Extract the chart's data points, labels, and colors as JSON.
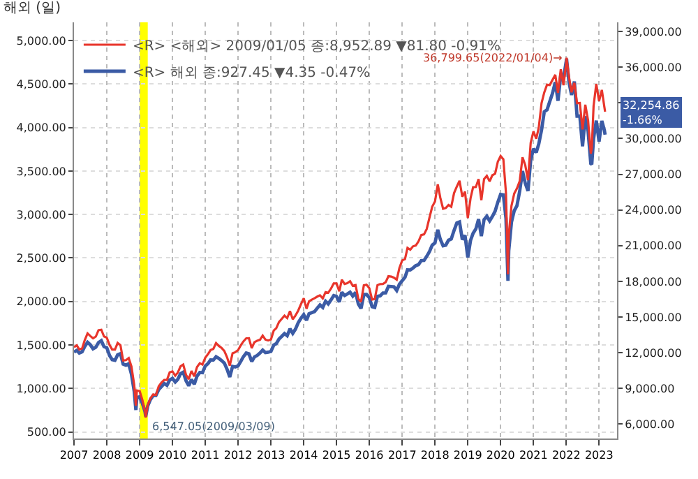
{
  "chart_data": {
    "type": "line",
    "title": "해외 (일)",
    "x": [
      "2007-01",
      "2007-02",
      "2007-03",
      "2007-04",
      "2007-05",
      "2007-06",
      "2007-07",
      "2007-08",
      "2007-09",
      "2007-10",
      "2007-11",
      "2007-12",
      "2008-01",
      "2008-02",
      "2008-03",
      "2008-04",
      "2008-05",
      "2008-06",
      "2008-07",
      "2008-08",
      "2008-09",
      "2008-10",
      "2008-11",
      "2008-11-20",
      "2008-12",
      "2009-01",
      "2009-02",
      "2009-03",
      "2009-03-09",
      "2009-04",
      "2009-05",
      "2009-06",
      "2009-07",
      "2009-08",
      "2009-09",
      "2009-10",
      "2009-11",
      "2009-12",
      "2010-01",
      "2010-02",
      "2010-03",
      "2010-04",
      "2010-05",
      "2010-06",
      "2010-07",
      "2010-08",
      "2010-09",
      "2010-10",
      "2010-11",
      "2010-12",
      "2011-01",
      "2011-02",
      "2011-03",
      "2011-04",
      "2011-05",
      "2011-06",
      "2011-07",
      "2011-08",
      "2011-09",
      "2011-10",
      "2011-11",
      "2011-12",
      "2012-01",
      "2012-02",
      "2012-03",
      "2012-04",
      "2012-05",
      "2012-06",
      "2012-07",
      "2012-08",
      "2012-09",
      "2012-10",
      "2012-11",
      "2012-12",
      "2013-01",
      "2013-02",
      "2013-03",
      "2013-04",
      "2013-05",
      "2013-06",
      "2013-07",
      "2013-08",
      "2013-09",
      "2013-10",
      "2013-11",
      "2013-12",
      "2014-01",
      "2014-02",
      "2014-03",
      "2014-04",
      "2014-05",
      "2014-06",
      "2014-07",
      "2014-08",
      "2014-09",
      "2014-10",
      "2014-11",
      "2014-12",
      "2015-01",
      "2015-02",
      "2015-03",
      "2015-04",
      "2015-05",
      "2015-06",
      "2015-07",
      "2015-08",
      "2015-09",
      "2015-10",
      "2015-11",
      "2015-12",
      "2016-01",
      "2016-02",
      "2016-03",
      "2016-04",
      "2016-05",
      "2016-06",
      "2016-07",
      "2016-08",
      "2016-09",
      "2016-10",
      "2016-11",
      "2016-12",
      "2017-01",
      "2017-02",
      "2017-03",
      "2017-04",
      "2017-05",
      "2017-06",
      "2017-07",
      "2017-08",
      "2017-09",
      "2017-10",
      "2017-11",
      "2017-12",
      "2018-01",
      "2018-02",
      "2018-03",
      "2018-04",
      "2018-05",
      "2018-06",
      "2018-07",
      "2018-08",
      "2018-09",
      "2018-10",
      "2018-11",
      "2018-12",
      "2019-01",
      "2019-02",
      "2019-03",
      "2019-04",
      "2019-05",
      "2019-06",
      "2019-07",
      "2019-08",
      "2019-09",
      "2019-10",
      "2019-11",
      "2019-12",
      "2020-01",
      "2020-02",
      "2020-03",
      "2020-03-23",
      "2020-04",
      "2020-05",
      "2020-06",
      "2020-07",
      "2020-08",
      "2020-09",
      "2020-10",
      "2020-11",
      "2020-12",
      "2021-01",
      "2021-02",
      "2021-03",
      "2021-04",
      "2021-05",
      "2021-06",
      "2021-07",
      "2021-08",
      "2021-09",
      "2021-10",
      "2021-11",
      "2021-12",
      "2022-01",
      "2022-01-04",
      "2022-02",
      "2022-03",
      "2022-04",
      "2022-05",
      "2022-06",
      "2022-07",
      "2022-08",
      "2022-09",
      "2022-10",
      "2022-10-12",
      "2022-11",
      "2022-12",
      "2023-01",
      "2023-02",
      "2023-03",
      "2023-03-09"
    ],
    "series": [
      {
        "name": "<R> <해외> 2009/01/05 종:8,952.89 ▼81.80 -0.91%",
        "color": "#e8352b",
        "axis": "y2",
        "values": [
          12463,
          12622,
          12269,
          12354,
          13063,
          13628,
          13409,
          13212,
          13358,
          13896,
          13930,
          13372,
          13265,
          12650,
          12266,
          12263,
          12820,
          12638,
          11350,
          11378,
          11544,
          10851,
          9325,
          7552,
          8829,
          8776,
          8001,
          7063,
          6547.05,
          7609,
          8168,
          8500,
          8447,
          9172,
          9496,
          9712,
          9713,
          10345,
          10428,
          10067,
          10325,
          10857,
          11009,
          10137,
          9774,
          10466,
          10015,
          10788,
          11118,
          11006,
          11578,
          11892,
          12226,
          12320,
          12811,
          12570,
          12414,
          12143,
          11614,
          10913,
          11955,
          12046,
          12218,
          12633,
          12952,
          13212,
          13214,
          12393,
          12880,
          13009,
          13091,
          13437,
          13096,
          13026,
          13104,
          13861,
          14054,
          14579,
          14840,
          15116,
          14910,
          15500,
          14810,
          15130,
          15546,
          16086,
          16577,
          15699,
          16322,
          16458,
          16581,
          16717,
          16827,
          16563,
          17098,
          17043,
          17391,
          17828,
          17823,
          17165,
          18133,
          17776,
          17841,
          18011,
          17620,
          17690,
          16528,
          16285,
          17664,
          17720,
          17425,
          16466,
          16517,
          17685,
          17774,
          17787,
          17930,
          18432,
          18401,
          18308,
          18142,
          19124,
          19763,
          19864,
          20812,
          20663,
          20941,
          21009,
          21350,
          21891,
          21948,
          22405,
          23377,
          24272,
          24719,
          26149,
          25029,
          24103,
          24163,
          24416,
          24271,
          25415,
          25965,
          26458,
          25116,
          25538,
          23327,
          24999,
          25916,
          25929,
          26593,
          24815,
          26600,
          26864,
          26403,
          26917,
          27046,
          28051,
          28538,
          28256,
          25409,
          18592,
          21917,
          24346,
          25383,
          25813,
          26428,
          28430,
          27782,
          26502,
          29639,
          30606,
          29983,
          30932,
          32982,
          33875,
          34529,
          34503,
          34935,
          35361,
          33844,
          35820,
          34484,
          36338,
          36799.65,
          35132,
          33893,
          34678,
          32977,
          32990,
          30775,
          32845,
          31510,
          28726,
          29210,
          32733,
          34590,
          33147,
          34086,
          32657,
          32254.86
        ]
      },
      {
        "name": "<R> 해외 종:927.45 ▼4.35 -0.47%",
        "color": "#3b5ba5",
        "axis": "y",
        "values": [
          1418,
          1438,
          1407,
          1421,
          1482,
          1531,
          1503,
          1455,
          1474,
          1527,
          1549,
          1481,
          1468,
          1378,
          1331,
          1323,
          1386,
          1400,
          1280,
          1267,
          1283,
          1165,
          969,
          752,
          896,
          903,
          826,
          735,
          677,
          798,
          873,
          919,
          919,
          987,
          1021,
          1057,
          1036,
          1096,
          1115,
          1074,
          1104,
          1169,
          1187,
          1089,
          1031,
          1102,
          1049,
          1141,
          1183,
          1181,
          1258,
          1286,
          1327,
          1326,
          1364,
          1345,
          1321,
          1292,
          1219,
          1131,
          1253,
          1247,
          1258,
          1312,
          1366,
          1408,
          1398,
          1310,
          1362,
          1379,
          1407,
          1441,
          1412,
          1416,
          1426,
          1498,
          1515,
          1569,
          1598,
          1631,
          1606,
          1686,
          1633,
          1682,
          1757,
          1806,
          1848,
          1783,
          1859,
          1872,
          1884,
          1924,
          1960,
          1931,
          2003,
          1972,
          2018,
          2068,
          2059,
          1995,
          2105,
          2068,
          2086,
          2107,
          2063,
          2104,
          1972,
          1920,
          2079,
          2080,
          2044,
          1940,
          1932,
          2060,
          2065,
          2097,
          2099,
          2174,
          2171,
          2168,
          2126,
          2199,
          2239,
          2279,
          2364,
          2363,
          2384,
          2412,
          2423,
          2470,
          2472,
          2519,
          2575,
          2648,
          2674,
          2824,
          2714,
          2641,
          2648,
          2705,
          2718,
          2816,
          2902,
          2914,
          2712,
          2760,
          2507,
          2704,
          2784,
          2834,
          2946,
          2752,
          2942,
          2980,
          2926,
          2977,
          3038,
          3141,
          3231,
          3226,
          2954,
          2237,
          2585,
          2912,
          3044,
          3100,
          3271,
          3500,
          3363,
          3270,
          3622,
          3756,
          3714,
          3811,
          3973,
          4181,
          4204,
          4298,
          4395,
          4523,
          4308,
          4605,
          4567,
          4766,
          4793,
          4516,
          4374,
          4530,
          4132,
          4132,
          3785,
          4130,
          3955,
          3586,
          3577,
          3872,
          4080,
          3840,
          4077,
          3970,
          3918
        ]
      }
    ],
    "xlim": [
      "2007-01-01",
      "2023-07-20"
    ],
    "xticks": [
      "2007",
      "2008",
      "2009",
      "2010",
      "2011",
      "2012",
      "2013",
      "2014",
      "2015",
      "2016",
      "2017",
      "2018",
      "2019",
      "2020",
      "2021",
      "2022",
      "2023"
    ],
    "ylim": [
      424,
      5210
    ],
    "yticks": [
      {
        "value": 500,
        "label": "500.00"
      },
      {
        "value": 1000,
        "label": "1,000.00"
      },
      {
        "value": 1500,
        "label": "1,500.00"
      },
      {
        "value": 2000,
        "label": "2,000.00"
      },
      {
        "value": 2500,
        "label": "2,500.00"
      },
      {
        "value": 3000,
        "label": "3,000.00"
      },
      {
        "value": 3500,
        "label": "3,500.00"
      },
      {
        "value": 4000,
        "label": "4,000.00"
      },
      {
        "value": 4500,
        "label": "4,500.00"
      },
      {
        "value": 5000,
        "label": "5,000.00"
      }
    ],
    "y2lim": [
      4790,
      39770
    ],
    "y2ticks": [
      {
        "value": 6000,
        "label": "6,000.00"
      },
      {
        "value": 9000,
        "label": "9,000.00"
      },
      {
        "value": 12000,
        "label": "12,000.00"
      },
      {
        "value": 15000,
        "label": "15,000.00"
      },
      {
        "value": 18000,
        "label": "18,000.00"
      },
      {
        "value": 21000,
        "label": "21,000.00"
      },
      {
        "value": 24000,
        "label": "24,000.00"
      },
      {
        "value": 27000,
        "label": "27,000.00"
      },
      {
        "value": 30000,
        "label": "30,000.00"
      },
      {
        "value": 33000,
        "label": null
      },
      {
        "value": 36000,
        "label": "36,000.00"
      },
      {
        "value": 39000,
        "label": "39,000.00"
      }
    ],
    "bands": [
      {
        "axis": "x",
        "from": "2009-01-01",
        "to": "2009-04-01",
        "color": "#ffff00"
      }
    ],
    "annotations": [
      "36,799.65(2022/01/04)→",
      "6,547.05(2009/03/09)",
      "32,254.86\n-1.66%"
    ],
    "grid": true,
    "legend": "top left",
    "marker": "none",
    "line_style": "solid"
  }
}
